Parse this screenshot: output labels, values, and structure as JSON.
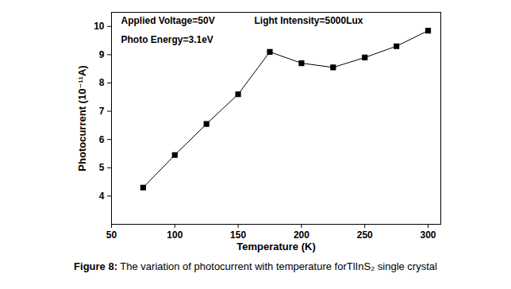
{
  "chart_data": {
    "type": "line",
    "caption": "Figure 8: The variation of photocurrent with temperature forTlInS₂ single crystal",
    "annotations": [
      "Applied Voltage=50V",
      "Light Intensity=5000Lux",
      "Photo Energy=3.1eV"
    ],
    "x_label": "Temperature (K)",
    "y_label": "Photocurrent (10⁻¹¹A)",
    "x": [
      75,
      100,
      125,
      150,
      175,
      200,
      225,
      250,
      275,
      300
    ],
    "values": [
      4.3,
      5.45,
      6.55,
      7.6,
      9.1,
      8.7,
      8.55,
      8.9,
      9.3,
      9.85
    ],
    "color": "#000000",
    "marker": "square",
    "line_style": "solid",
    "xlim": [
      50,
      310
    ],
    "xticks": [
      50,
      100,
      150,
      200,
      250,
      300
    ],
    "ylim": [
      3,
      10.5
    ],
    "yticks": [
      4,
      5,
      6,
      7,
      8,
      9,
      10
    ],
    "grid": false
  }
}
